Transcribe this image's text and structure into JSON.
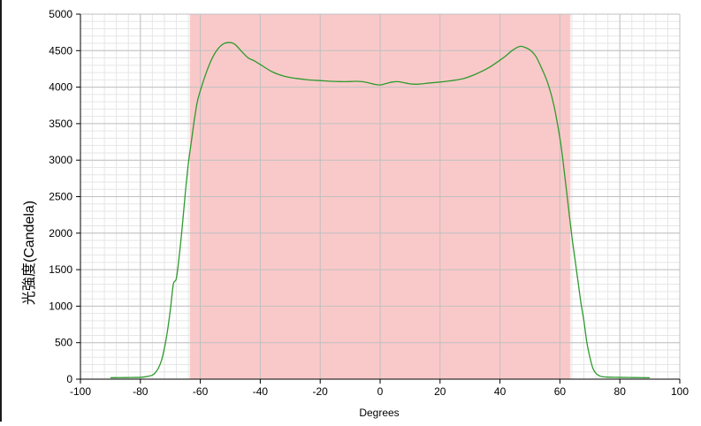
{
  "chart_data": {
    "type": "line",
    "title": "",
    "xlabel": "Degrees",
    "ylabel": "光強度(Candela)",
    "xlim": [
      -100,
      100
    ],
    "ylim": [
      0,
      5000
    ],
    "x_ticks": [
      -100,
      -80,
      -60,
      -40,
      -20,
      0,
      20,
      40,
      60,
      80,
      100
    ],
    "y_ticks": [
      0,
      500,
      1000,
      1500,
      2000,
      2500,
      3000,
      3500,
      4000,
      4500,
      5000
    ],
    "grid": true,
    "highlight_band": {
      "x_from": -63.5,
      "x_to": 63.5,
      "color": "#f9c9c9"
    },
    "colors": {
      "line": "#2e9a2e",
      "band": "#f9c9c9",
      "grid_major": "#c0c0c0",
      "grid_minor": "#e6e6e6"
    },
    "series": [
      {
        "x": [
          -90,
          -85,
          -80,
          -78,
          -76,
          -75,
          -74,
          -73,
          -72,
          -71,
          -70,
          -69,
          -68,
          -67,
          -66,
          -65,
          -64,
          -63,
          -62,
          -61,
          -60,
          -58,
          -56,
          -54,
          -52,
          -50,
          -49,
          -48,
          -46,
          -44,
          -42,
          -40,
          -36,
          -32,
          -28,
          -24,
          -20,
          -16,
          -12,
          -8,
          -6,
          -4,
          -2,
          0,
          2,
          4,
          6,
          8,
          10,
          12,
          14,
          16,
          20,
          24,
          28,
          32,
          36,
          40,
          42,
          44,
          46,
          47,
          48,
          50,
          52,
          54,
          56,
          58,
          60,
          61,
          62,
          63,
          64,
          65,
          66,
          67,
          68,
          69,
          70,
          71,
          72,
          73,
          74,
          76,
          80,
          85,
          90
        ],
        "y": [
          20,
          22,
          25,
          35,
          55,
          90,
          150,
          250,
          420,
          650,
          950,
          1300,
          1380,
          1700,
          2100,
          2550,
          2950,
          3250,
          3550,
          3800,
          3950,
          4200,
          4400,
          4530,
          4600,
          4610,
          4600,
          4570,
          4480,
          4400,
          4360,
          4310,
          4210,
          4150,
          4120,
          4100,
          4090,
          4080,
          4075,
          4080,
          4075,
          4060,
          4040,
          4030,
          4050,
          4070,
          4075,
          4060,
          4045,
          4040,
          4045,
          4055,
          4070,
          4090,
          4120,
          4180,
          4260,
          4370,
          4430,
          4500,
          4550,
          4560,
          4550,
          4510,
          4420,
          4250,
          4050,
          3750,
          3300,
          3000,
          2650,
          2300,
          1950,
          1650,
          1350,
          1050,
          800,
          500,
          300,
          150,
          80,
          50,
          35,
          28,
          25,
          22,
          20
        ]
      }
    ]
  }
}
